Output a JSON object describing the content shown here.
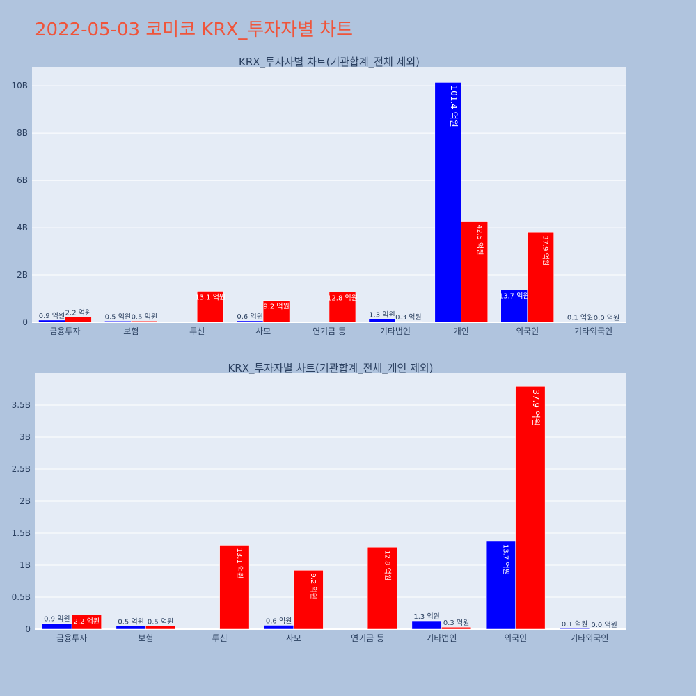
{
  "page": {
    "title": "2022-05-03 코미코 KRX_투자자별 차트"
  },
  "colors": {
    "buy": "#0000ff",
    "sell": "#ff0000",
    "plot_bg": "#e5ecf6",
    "paper_bg": "#b0c4de",
    "title": "#ef553b",
    "axis_text": "#2a3f5f"
  },
  "chart_data": [
    {
      "type": "bar",
      "title": "KRX_투자자별 차트(기관합계_전체 제외)",
      "categories": [
        "금융투자",
        "보험",
        "투신",
        "사모",
        "연기금 등",
        "기타법인",
        "개인",
        "외국인",
        "기타외국인"
      ],
      "series": [
        {
          "color": "#0000ff",
          "values": [
            90000000,
            50000000,
            0,
            60000000,
            0,
            130000000,
            10140000000,
            1370000000,
            10000000
          ],
          "labels": [
            "0.9 억원",
            "0.5 억원",
            "",
            "0.6 억원",
            "",
            "1.3 억원",
            "101.4 억원",
            "13.7 억원",
            "0.1 억원"
          ]
        },
        {
          "color": "#ff0000",
          "values": [
            220000000,
            50000000,
            1310000000,
            920000000,
            1280000000,
            30000000,
            4250000000,
            3790000000,
            0
          ],
          "labels": [
            "2.2 억원",
            "0.5 억원",
            "13.1 억원",
            "9.2 억원",
            "12.8 억원",
            "0.3 억원",
            "42.5 억원",
            "37.9 억원",
            "0.0 억원"
          ]
        }
      ],
      "ylim": [
        0,
        10800000000
      ],
      "yticks": [
        0,
        2000000000,
        4000000000,
        6000000000,
        8000000000,
        10000000000
      ],
      "ytick_labels": [
        "0",
        "2B",
        "4B",
        "6B",
        "8B",
        "10B"
      ],
      "grid": true,
      "legend": "none"
    },
    {
      "type": "bar",
      "title": "KRX_투자자별 차트(기관합계_전체_개인 제외)",
      "categories": [
        "금융투자",
        "보험",
        "투신",
        "사모",
        "연기금 등",
        "기타법인",
        "외국인",
        "기타외국인"
      ],
      "series": [
        {
          "color": "#0000ff",
          "values": [
            90000000,
            50000000,
            0,
            60000000,
            0,
            130000000,
            1370000000,
            10000000
          ],
          "labels": [
            "0.9 억원",
            "0.5 억원",
            "",
            "0.6 억원",
            "",
            "1.3 억원",
            "13.7 억원",
            "0.1 억원"
          ]
        },
        {
          "color": "#ff0000",
          "values": [
            220000000,
            50000000,
            1310000000,
            920000000,
            1280000000,
            30000000,
            3790000000,
            0
          ],
          "labels": [
            "2.2 억원",
            "0.5 억원",
            "13.1 억원",
            "9.2 억원",
            "12.8 억원",
            "0.3 억원",
            "37.9 억원",
            "0.0 억원"
          ]
        }
      ],
      "ylim": [
        0,
        4000000000
      ],
      "yticks": [
        0,
        500000000,
        1000000000,
        1500000000,
        2000000000,
        2500000000,
        3000000000,
        3500000000
      ],
      "ytick_labels": [
        "0",
        "0.5B",
        "1B",
        "1.5B",
        "2B",
        "2.5B",
        "3B",
        "3.5B"
      ],
      "grid": true,
      "legend": "none"
    }
  ]
}
